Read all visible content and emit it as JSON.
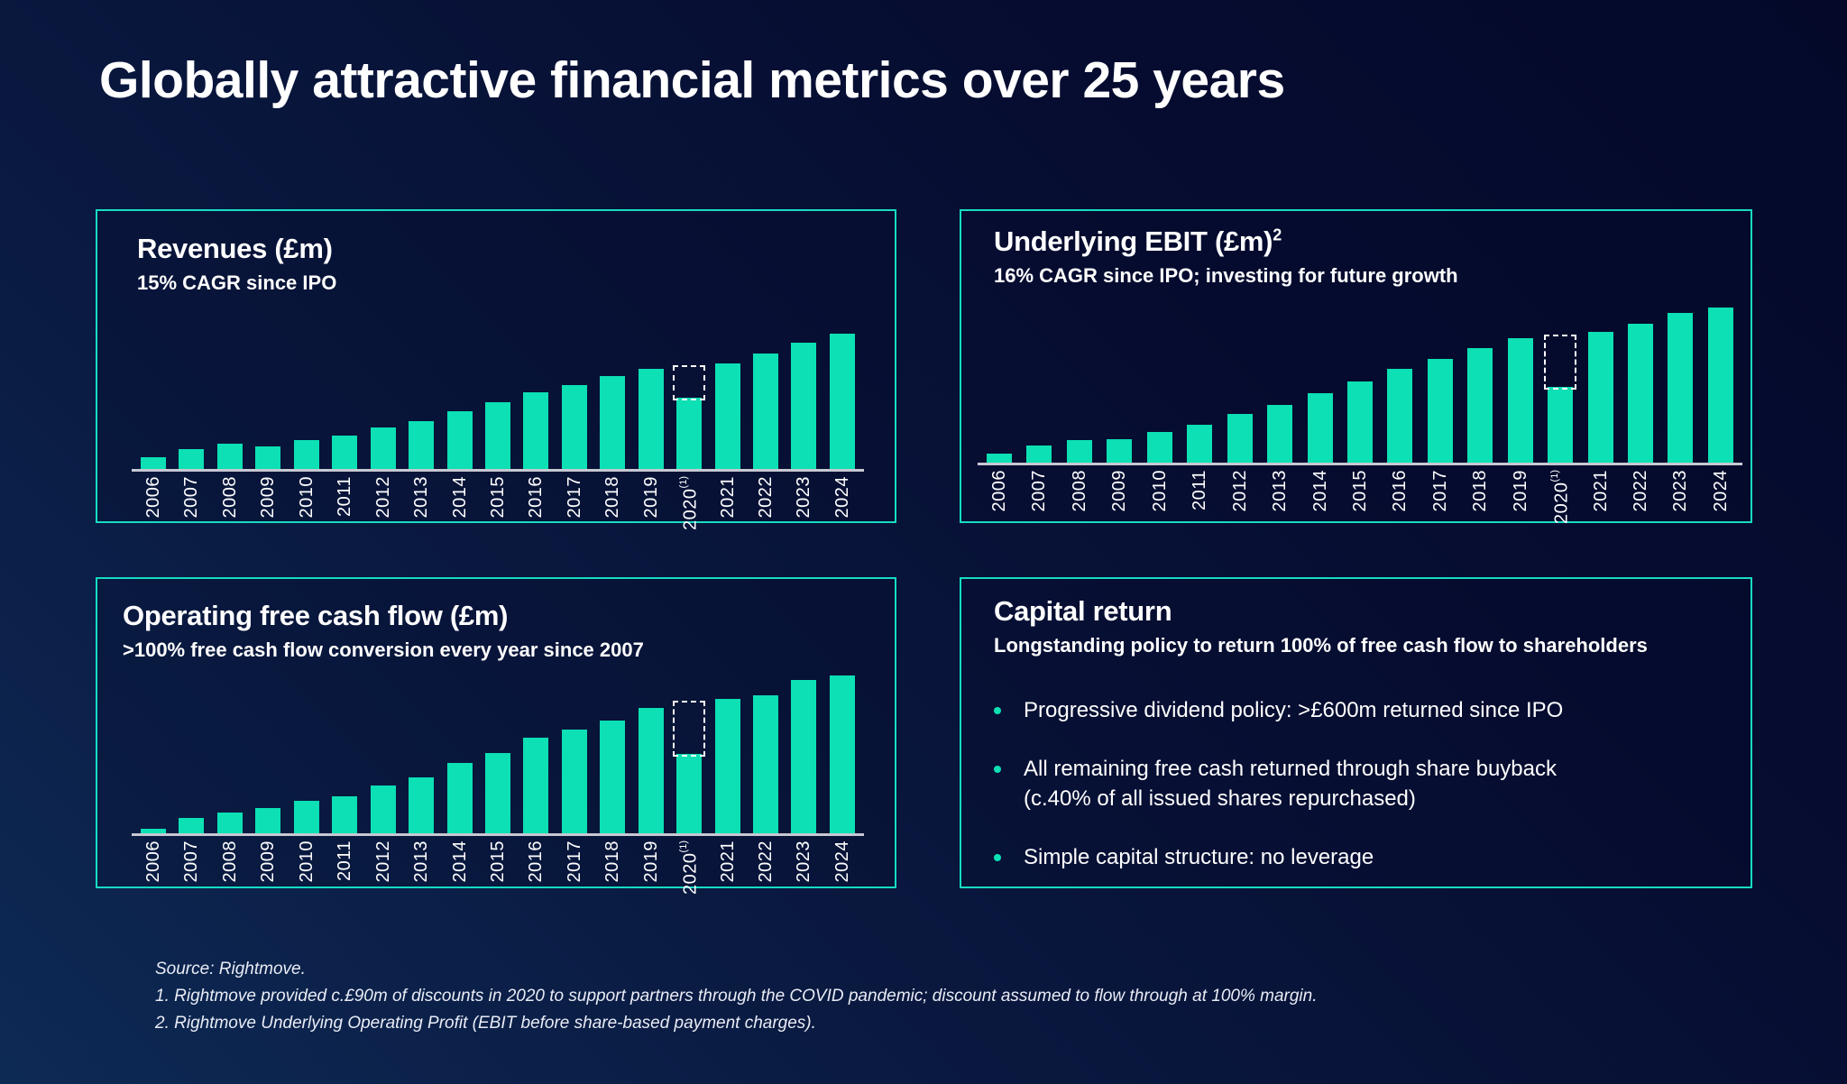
{
  "slide": {
    "title": "Globally attractive financial metrics over 25 years"
  },
  "theme": {
    "accent": "#0ce0b4",
    "panel_border": "#16dcc3",
    "axis": "#c6c8d2",
    "background_dark": "#04092a",
    "background_light": "#0d2a55",
    "text": "#ffffff"
  },
  "chart_data": [
    {
      "id": "revenues",
      "type": "bar",
      "title": "Revenues (£m)",
      "subtitle": "15% CAGR since IPO",
      "categories": [
        "2006",
        "2007",
        "2008",
        "2009",
        "2010",
        "2011",
        "2012",
        "2013",
        "2014",
        "2015",
        "2016",
        "2017",
        "2018",
        "2019",
        "2020",
        "2021",
        "2022",
        "2023",
        "2024"
      ],
      "values": [
        34,
        56,
        74,
        66,
        82,
        97,
        119,
        139,
        167,
        192,
        220,
        243,
        268,
        289,
        206,
        305,
        333,
        364,
        390
      ],
      "dashed_overlay": {
        "category": "2020",
        "extra_value": 90,
        "marker": "(1)"
      },
      "xlabel": "",
      "ylabel": "",
      "ylim": [
        0,
        390
      ],
      "grid": false,
      "legend": "none",
      "bar_color": "#0ce0b4"
    },
    {
      "id": "underlying-ebit",
      "type": "bar",
      "title": "Underlying EBIT (£m)",
      "title_superscript": "2",
      "subtitle": "16% CAGR since IPO; investing for future growth",
      "categories": [
        "2006",
        "2007",
        "2008",
        "2009",
        "2010",
        "2011",
        "2012",
        "2013",
        "2014",
        "2015",
        "2016",
        "2017",
        "2018",
        "2019",
        "2020",
        "2021",
        "2022",
        "2023",
        "2024"
      ],
      "values": [
        16,
        30,
        40,
        41,
        54,
        67,
        86,
        102,
        122,
        143,
        165,
        183,
        202,
        219,
        133,
        230,
        245,
        264,
        273
      ],
      "dashed_overlay": {
        "category": "2020",
        "extra_value": 90,
        "marker": "(1)"
      },
      "xlabel": "",
      "ylabel": "",
      "ylim": [
        0,
        273
      ],
      "grid": false,
      "legend": "none",
      "bar_color": "#0ce0b4"
    },
    {
      "id": "operating-free-cash-flow",
      "type": "bar",
      "title": "Operating free cash flow (£m)",
      "subtitle": ">100% free cash flow conversion every year since 2007",
      "categories": [
        "2006",
        "2007",
        "2008",
        "2009",
        "2010",
        "2011",
        "2012",
        "2013",
        "2014",
        "2015",
        "2016",
        "2017",
        "2018",
        "2019",
        "2020",
        "2021",
        "2022",
        "2023",
        "2024"
      ],
      "values": [
        6,
        20,
        28,
        34,
        43,
        49,
        64,
        74,
        94,
        107,
        127,
        138,
        150,
        167,
        106,
        179,
        184,
        204,
        210
      ],
      "dashed_overlay": {
        "category": "2020",
        "extra_value": 70,
        "marker": "(1)"
      },
      "xlabel": "",
      "ylabel": "",
      "ylim": [
        0,
        210
      ],
      "grid": false,
      "legend": "none",
      "bar_color": "#0ce0b4"
    }
  ],
  "capital_return": {
    "title": "Capital return",
    "subtitle": "Longstanding policy to return 100% of free cash flow to shareholders",
    "bullets": [
      "Progressive dividend policy: >£600m returned since IPO",
      "All remaining free cash returned through share buyback (c.40% of all issued shares repurchased)",
      "Simple capital structure: no leverage"
    ]
  },
  "footnotes": {
    "source": "Source: Rightmove.",
    "note1": "1.  Rightmove provided c.£90m of discounts in 2020 to support partners through the COVID pandemic; discount assumed to flow through at 100% margin.",
    "note2": "2.  Rightmove Underlying Operating Profit (EBIT before share-based payment charges)."
  }
}
